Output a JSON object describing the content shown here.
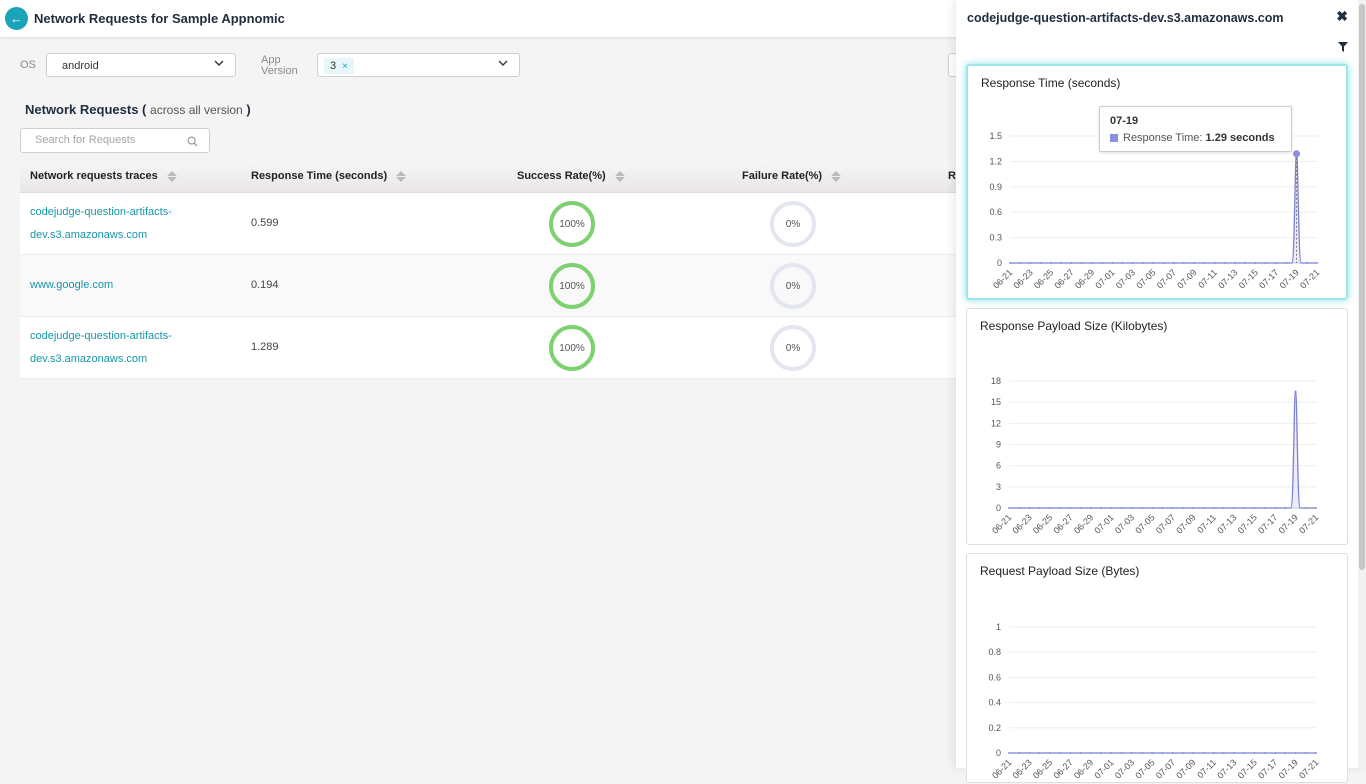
{
  "header": {
    "title": "Network Requests for Sample Appnomic"
  },
  "filters": {
    "os_label": "OS",
    "os_value": "android",
    "app_version_label": "App Version",
    "app_version_chip": "3",
    "chip_remove": "×"
  },
  "section": {
    "title": "Network Requests",
    "paren_open": "(",
    "subtitle": "across all version",
    "paren_close": ")"
  },
  "search": {
    "placeholder": "Search for Requests"
  },
  "table": {
    "headers": [
      "Network requests traces",
      "Response Time (seconds)",
      "Success Rate(%)",
      "Failure Rate(%)",
      "R"
    ],
    "rows": [
      {
        "trace_line1": "codejudge-question-artifacts-",
        "trace_line2": "dev.s3.amazonaws.com",
        "response_time": "0.599",
        "success": "100%",
        "failure": "0%"
      },
      {
        "trace_line1": "www.google.com",
        "trace_line2": "",
        "response_time": "0.194",
        "success": "100%",
        "failure": "0%"
      },
      {
        "trace_line1": "codejudge-question-artifacts-",
        "trace_line2": "dev.s3.amazonaws.com",
        "response_time": "1.289",
        "success": "100%",
        "failure": "0%"
      }
    ]
  },
  "panel": {
    "title": "codejudge-question-artifacts-dev.s3.amazonaws.com",
    "close_glyph": "✖",
    "tooltip": {
      "date": "07-19",
      "series": "Response Time:",
      "value": "1.29 seconds"
    }
  },
  "colors": {
    "accent": "#1ba3b7",
    "link": "#1696a8",
    "success_ring": "#7ed170",
    "failure_ring": "#e3e6ee",
    "series": "#7b7fd6"
  },
  "chart_data": [
    {
      "type": "area",
      "title": "Response Time (seconds)",
      "x": [
        "06-21",
        "06-22",
        "06-23",
        "06-24",
        "06-25",
        "06-26",
        "06-27",
        "06-28",
        "06-29",
        "06-30",
        "07-01",
        "07-02",
        "07-03",
        "07-04",
        "07-05",
        "07-06",
        "07-07",
        "07-08",
        "07-09",
        "07-10",
        "07-11",
        "07-12",
        "07-13",
        "07-14",
        "07-15",
        "07-16",
        "07-17",
        "07-18",
        "07-19",
        "07-20",
        "07-21"
      ],
      "x_tick_labels": [
        "06-21",
        "06-23",
        "06-25",
        "06-27",
        "06-29",
        "07-01",
        "07-03",
        "07-05",
        "07-07",
        "07-09",
        "07-11",
        "07-13",
        "07-15",
        "07-17",
        "07-19",
        "07-21"
      ],
      "series": [
        {
          "values": [
            0,
            0,
            0,
            0,
            0,
            0,
            0,
            0,
            0,
            0,
            0,
            0,
            0,
            0,
            0,
            0,
            0,
            0,
            0,
            0,
            0,
            0,
            0,
            0,
            0,
            0,
            0,
            0,
            1.29,
            0,
            0
          ]
        }
      ],
      "ylim": [
        0,
        1.5
      ],
      "y_ticks": [
        "0",
        "0.3",
        "0.6",
        "0.9",
        "1.2",
        "1.5"
      ],
      "grid": true
    },
    {
      "type": "area",
      "title": "Response Payload Size (Kilobytes)",
      "x": [
        "06-21",
        "06-22",
        "06-23",
        "06-24",
        "06-25",
        "06-26",
        "06-27",
        "06-28",
        "06-29",
        "06-30",
        "07-01",
        "07-02",
        "07-03",
        "07-04",
        "07-05",
        "07-06",
        "07-07",
        "07-08",
        "07-09",
        "07-10",
        "07-11",
        "07-12",
        "07-13",
        "07-14",
        "07-15",
        "07-16",
        "07-17",
        "07-18",
        "07-19",
        "07-20",
        "07-21"
      ],
      "x_tick_labels": [
        "06-21",
        "06-23",
        "06-25",
        "06-27",
        "06-29",
        "07-01",
        "07-03",
        "07-05",
        "07-07",
        "07-09",
        "07-11",
        "07-13",
        "07-15",
        "07-17",
        "07-19",
        "07-21"
      ],
      "series": [
        {
          "values": [
            0,
            0,
            0,
            0,
            0,
            0,
            0,
            0,
            0,
            0,
            0,
            0,
            0,
            0,
            0,
            0,
            0,
            0,
            0,
            0,
            0,
            0,
            0,
            0,
            0,
            0,
            0,
            0,
            16.5,
            0,
            0
          ]
        }
      ],
      "ylim": [
        0,
        18
      ],
      "y_ticks": [
        "0",
        "3",
        "6",
        "9",
        "12",
        "15",
        "18"
      ],
      "grid": true
    },
    {
      "type": "area",
      "title": "Request Payload Size (Bytes)",
      "x": [
        "06-21",
        "06-22",
        "06-23",
        "06-24",
        "06-25",
        "06-26",
        "06-27",
        "06-28",
        "06-29",
        "06-30",
        "07-01",
        "07-02",
        "07-03",
        "07-04",
        "07-05",
        "07-06",
        "07-07",
        "07-08",
        "07-09",
        "07-10",
        "07-11",
        "07-12",
        "07-13",
        "07-14",
        "07-15",
        "07-16",
        "07-17",
        "07-18",
        "07-19",
        "07-20",
        "07-21"
      ],
      "x_tick_labels": [
        "06-21",
        "06-23",
        "06-25",
        "06-27",
        "06-29",
        "07-01",
        "07-03",
        "07-05",
        "07-07",
        "07-09",
        "07-11",
        "07-13",
        "07-15",
        "07-17",
        "07-19",
        "07-21"
      ],
      "series": [
        {
          "values": [
            0,
            0,
            0,
            0,
            0,
            0,
            0,
            0,
            0,
            0,
            0,
            0,
            0,
            0,
            0,
            0,
            0,
            0,
            0,
            0,
            0,
            0,
            0,
            0,
            0,
            0,
            0,
            0,
            0,
            0,
            0
          ]
        }
      ],
      "ylim": [
        0,
        1
      ],
      "y_ticks": [
        "0",
        "0.2",
        "0.4",
        "0.6",
        "0.8",
        "1"
      ],
      "grid": true
    }
  ]
}
